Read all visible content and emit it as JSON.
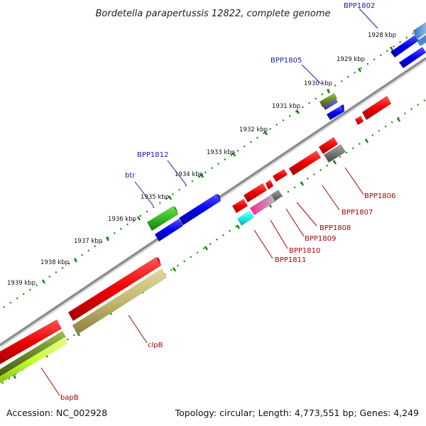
{
  "title": "Bordetella parapertussis 12822, complete genome",
  "footer": {
    "accession": "Accession: NC_002928",
    "summary": "Topology: circular; Length: 4,773,551 bp; Genes: 4,249"
  },
  "ticks": [
    {
      "label": "1928 kbp"
    },
    {
      "label": "1929 kbp"
    },
    {
      "label": "1930 kbp"
    },
    {
      "label": "1931 kbp"
    },
    {
      "label": "1932 kbp"
    },
    {
      "label": "1933 kbp"
    },
    {
      "label": "1934 kbp"
    },
    {
      "label": "1935 kbp"
    },
    {
      "label": "1936 kbp"
    },
    {
      "label": "1937 kbp"
    },
    {
      "label": "1938 kbp"
    },
    {
      "label": "1939 kbp"
    }
  ],
  "gene_labels": {
    "BPP1802": "BPP1802",
    "BPP1805": "BPP1805",
    "BPP1812": "BPP1812",
    "btr": "btr",
    "BPP1806": "BPP1806",
    "BPP1807": "BPP1807",
    "BPP1808": "BPP1808",
    "BPP1809": "BPP1809",
    "BPP1810": "BPP1810",
    "BPP1811": "BPP1811",
    "clpB": "clpB",
    "bapB": "bapB"
  },
  "colors": {
    "forward_gene": "#0000ee",
    "reverse_gene": "#ee0000",
    "tick": "#118811",
    "backbone": "#8a8a8a"
  }
}
